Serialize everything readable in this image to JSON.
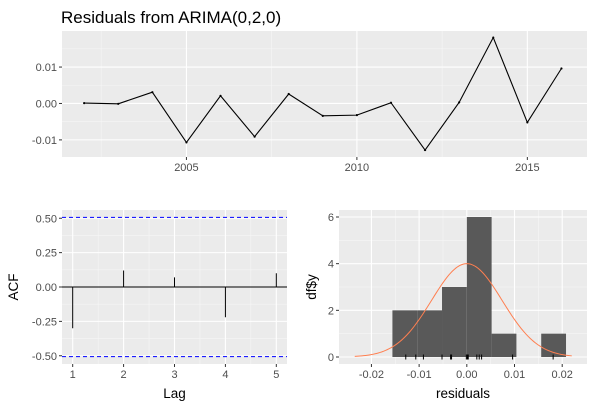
{
  "chart_data": [
    {
      "type": "line",
      "title": "Residuals from ARIMA(0,2,0)",
      "xlabel": "",
      "ylabel": "",
      "x": [
        2002,
        2003,
        2004,
        2005,
        2006,
        2007,
        2008,
        2009,
        2010,
        2011,
        2012,
        2013,
        2014,
        2015,
        2016
      ],
      "y": [
        0.0001,
        -0.0001,
        0.0031,
        -0.0107,
        0.0021,
        -0.0091,
        0.0026,
        -0.0034,
        -0.0032,
        0.0002,
        -0.0128,
        0.0003,
        0.0181,
        -0.0052,
        0.0096
      ],
      "xlim": [
        2001.35,
        2016.75
      ],
      "ylim": [
        -0.0147,
        0.0199
      ],
      "x_ticks": [
        2005,
        2010,
        2015
      ],
      "x_tick_labels": [
        "2005",
        "2010",
        "2015"
      ],
      "y_ticks": [
        -0.01,
        0.0,
        0.01
      ],
      "y_tick_labels": [
        "-0.01",
        "0.00",
        "0.01"
      ],
      "grid": true,
      "background": "#ebebeb",
      "line_color": "#000000"
    },
    {
      "type": "bar",
      "title": "",
      "xlabel": "Lag",
      "ylabel": "ACF",
      "lags": [
        1,
        2,
        3,
        4,
        5
      ],
      "values": [
        -0.3,
        0.12,
        0.07,
        -0.22,
        0.1
      ],
      "xlim": [
        0.79,
        5.21
      ],
      "ylim": [
        -0.56,
        0.56
      ],
      "x_ticks": [
        1,
        2,
        3,
        4,
        5
      ],
      "x_tick_labels": [
        "1",
        "2",
        "3",
        "4",
        "5"
      ],
      "y_ticks": [
        -0.5,
        -0.25,
        0.0,
        0.25,
        0.5
      ],
      "y_tick_labels": [
        "-0.50",
        "-0.25",
        "0.00",
        "0.25",
        "0.50"
      ],
      "confidence_bound": 0.506,
      "ci_color": "#0000ff",
      "grid": true,
      "background": "#ebebeb"
    },
    {
      "type": "histogram",
      "title": "",
      "xlabel": "residuals",
      "ylabel": "df$y",
      "bins": [
        {
          "x0": -0.0156,
          "x1": -0.0104,
          "count": 2
        },
        {
          "x0": -0.0104,
          "x1": -0.0052,
          "count": 2
        },
        {
          "x0": -0.0052,
          "x1": 0.0,
          "count": 3
        },
        {
          "x0": 0.0,
          "x1": 0.0052,
          "count": 6
        },
        {
          "x0": 0.0052,
          "x1": 0.0104,
          "count": 1
        },
        {
          "x0": 0.0104,
          "x1": 0.0156,
          "count": 0
        },
        {
          "x0": 0.0156,
          "x1": 0.0208,
          "count": 1
        }
      ],
      "rug": [
        -0.0128,
        -0.0107,
        -0.0091,
        -0.0052,
        -0.0034,
        -0.0032,
        -0.0001,
        0.0001,
        0.0002,
        0.0003,
        0.0021,
        0.0026,
        0.0031,
        0.0096,
        0.0181
      ],
      "density_curve": {
        "mean": 0.0,
        "sd": 0.0074,
        "peak": 4.0
      },
      "xlim": [
        -0.0268,
        0.0252
      ],
      "ylim": [
        -0.3,
        6.3
      ],
      "x_ticks": [
        -0.02,
        -0.01,
        0.0,
        0.01,
        0.02
      ],
      "x_tick_labels": [
        "-0.02",
        "-0.01",
        "0.00",
        "0.01",
        "0.02"
      ],
      "y_ticks": [
        0,
        2,
        4,
        6
      ],
      "y_tick_labels": [
        "0",
        "2",
        "4",
        "6"
      ],
      "bar_color": "#595959",
      "curve_color": "#ff7f50",
      "grid": true,
      "background": "#ebebeb"
    }
  ]
}
